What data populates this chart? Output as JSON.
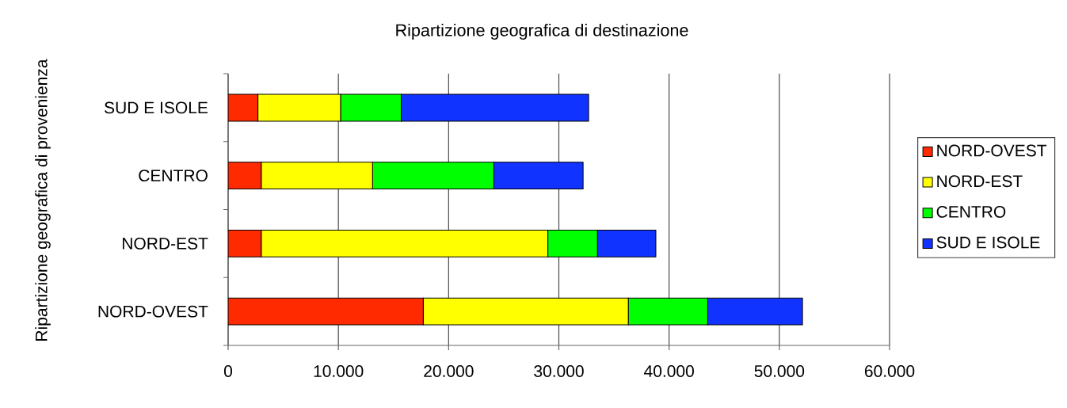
{
  "chart_data": {
    "type": "bar",
    "orientation": "horizontal",
    "stacked": true,
    "title": "Ripartizione geografica di destinazione",
    "ylabel": "Ripartizione geografica di provenienza",
    "categories": [
      "SUD E ISOLE",
      "CENTRO",
      "NORD-EST",
      "NORD-OVEST"
    ],
    "series": [
      {
        "name": "NORD-OVEST",
        "color": "#ff2a00",
        "values": [
          2700,
          3000,
          3000,
          17700
        ]
      },
      {
        "name": "NORD-EST",
        "color": "#ffff00",
        "values": [
          7500,
          10100,
          26000,
          18600
        ]
      },
      {
        "name": "CENTRO",
        "color": "#00ff00",
        "values": [
          5500,
          11000,
          4500,
          7200
        ]
      },
      {
        "name": "SUD E ISOLE",
        "color": "#1133ff",
        "values": [
          17000,
          8100,
          5300,
          8600
        ]
      }
    ],
    "xlim": [
      0,
      60000
    ],
    "xticks": [
      0,
      {
        "value": 10000,
        "label": "10.000"
      },
      {
        "value": 20000,
        "label": "20.000"
      },
      {
        "value": 30000,
        "label": "30.000"
      },
      {
        "value": 40000,
        "label": "40.000"
      },
      {
        "value": 50000,
        "label": "50.000"
      },
      {
        "value": 60000,
        "label": "60.000"
      }
    ],
    "grid": "x",
    "legend": "right"
  }
}
